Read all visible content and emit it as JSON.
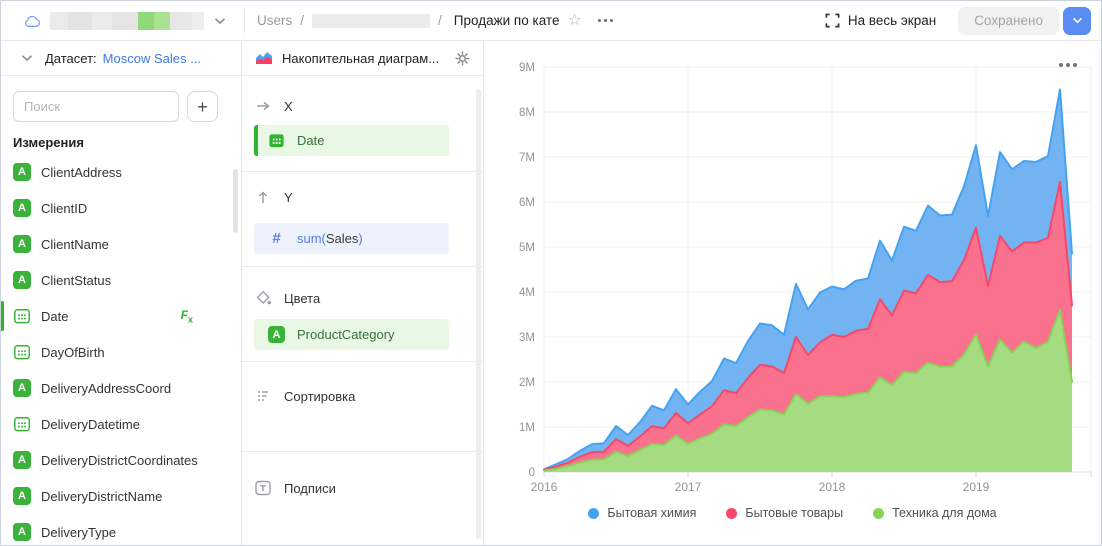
{
  "topbar": {
    "breadcrumb": {
      "root": "Users",
      "sep": "/",
      "current": "Продажи по кате"
    },
    "fullscreen_label": "На весь экран",
    "saved_label": "Сохранено"
  },
  "sidebar": {
    "dataset_label": "Датасет:",
    "dataset_name": "Moscow Sales ...",
    "search_placeholder": "Поиск",
    "add_button": "+",
    "dimensions_title": "Измерения",
    "string_icon_letter": "A",
    "formula_f": "F",
    "formula_x": "x",
    "fields": [
      {
        "name": "ClientAddress",
        "type": "string"
      },
      {
        "name": "ClientID",
        "type": "string"
      },
      {
        "name": "ClientName",
        "type": "string"
      },
      {
        "name": "ClientStatus",
        "type": "string"
      },
      {
        "name": "Date",
        "type": "date",
        "active": true,
        "formula": true
      },
      {
        "name": "DayOfBirth",
        "type": "date"
      },
      {
        "name": "DeliveryAddressCoord",
        "type": "string"
      },
      {
        "name": "DeliveryDatetime",
        "type": "date"
      },
      {
        "name": "DeliveryDistrictCoordinates",
        "type": "string"
      },
      {
        "name": "DeliveryDistrictName",
        "type": "string"
      },
      {
        "name": "DeliveryType",
        "type": "string"
      }
    ]
  },
  "config": {
    "title": "Накопительная диаграм...",
    "x_label": "X",
    "x_field": "Date",
    "y_label": "Y",
    "y_fn": "sum(",
    "y_field": "Sales",
    "y_close": ")",
    "colors_label": "Цвета",
    "colors_field": "ProductCategory",
    "sort_label": "Сортировка",
    "captions_label": "Подписи"
  },
  "colors": {
    "accent_blue": "#5a8df4",
    "link_blue": "#3d78e8",
    "field_green": "#3bb33b",
    "dimension_pill_bg": "#e9f7e5",
    "measure_pill_bg": "#edf2fc"
  },
  "chart_data": {
    "type": "area",
    "stacked": true,
    "title": "",
    "xlabel": "",
    "ylabel": "",
    "value_unit": "millions",
    "ylim": [
      0,
      9
    ],
    "grid": true,
    "legend_position": "bottom",
    "x": [
      "2016-01",
      "2016-02",
      "2016-03",
      "2016-04",
      "2016-05",
      "2016-06",
      "2016-07",
      "2016-08",
      "2016-09",
      "2016-10",
      "2016-11",
      "2016-12",
      "2017-01",
      "2017-02",
      "2017-03",
      "2017-04",
      "2017-05",
      "2017-06",
      "2017-07",
      "2017-08",
      "2017-09",
      "2017-10",
      "2017-11",
      "2017-12",
      "2018-01",
      "2018-02",
      "2018-03",
      "2018-04",
      "2018-05",
      "2018-06",
      "2018-07",
      "2018-08",
      "2018-09",
      "2018-10",
      "2018-11",
      "2018-12",
      "2019-01",
      "2019-02",
      "2019-03",
      "2019-04",
      "2019-05",
      "2019-06",
      "2019-07",
      "2019-08",
      "2019-09"
    ],
    "x_ticks": [
      "2016",
      "2017",
      "2018",
      "2019"
    ],
    "y_ticks": [
      "0",
      "1M",
      "2M",
      "3M",
      "4M",
      "5M",
      "6M",
      "7M",
      "8M",
      "9M"
    ],
    "stack_bottom_to_top": [
      "Техника для дома",
      "Бытовые товары",
      "Бытовая химия"
    ],
    "series": [
      {
        "name": "Бытовая химия",
        "color": "#43a3f1",
        "fill": "#74b3f2",
        "values": [
          0.01,
          0.05,
          0.08,
          0.13,
          0.18,
          0.19,
          0.29,
          0.24,
          0.32,
          0.45,
          0.4,
          0.53,
          0.42,
          0.5,
          0.56,
          0.7,
          0.67,
          0.82,
          0.92,
          0.91,
          0.85,
          1.18,
          1.01,
          1.11,
          1.07,
          1.06,
          1.11,
          1.12,
          1.3,
          1.22,
          1.42,
          1.39,
          1.54,
          1.48,
          1.48,
          1.64,
          1.83,
          1.56,
          1.86,
          1.83,
          1.81,
          1.79,
          1.82,
          2.05,
          1.15
        ]
      },
      {
        "name": "Бытовые товары",
        "color": "#f7486b",
        "fill": "#f9718c",
        "values": [
          0.02,
          0.05,
          0.08,
          0.13,
          0.17,
          0.17,
          0.28,
          0.22,
          0.3,
          0.4,
          0.37,
          0.5,
          0.45,
          0.53,
          0.61,
          0.76,
          0.73,
          0.87,
          0.99,
          0.98,
          0.92,
          1.27,
          1.08,
          1.2,
          1.36,
          1.34,
          1.4,
          1.42,
          1.74,
          1.55,
          1.8,
          1.77,
          1.95,
          1.88,
          1.89,
          2.1,
          2.38,
          1.78,
          2.3,
          2.25,
          2.2,
          2.35,
          2.3,
          2.85,
          1.7
        ]
      },
      {
        "name": "Техника для дома",
        "color": "#8ad158",
        "fill": "#a5dc82",
        "values": [
          0.03,
          0.07,
          0.13,
          0.21,
          0.27,
          0.28,
          0.45,
          0.36,
          0.49,
          0.62,
          0.6,
          0.81,
          0.63,
          0.75,
          0.85,
          1.06,
          1.02,
          1.22,
          1.39,
          1.37,
          1.28,
          1.73,
          1.52,
          1.68,
          1.69,
          1.66,
          1.74,
          1.76,
          2.1,
          1.93,
          2.23,
          2.2,
          2.43,
          2.34,
          2.35,
          2.61,
          3.05,
          2.35,
          2.95,
          2.65,
          2.9,
          2.75,
          2.9,
          3.6,
          2.0
        ]
      }
    ]
  }
}
